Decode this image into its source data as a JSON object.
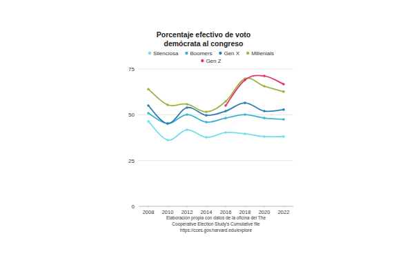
{
  "chart_data": {
    "type": "line",
    "title": "Porcentaje efectivo de voto demócrata al congreso",
    "x": [
      2008,
      2010,
      2012,
      2014,
      2016,
      2018,
      2020,
      2022
    ],
    "xlim": [
      2007,
      2023
    ],
    "xticks": [
      2008,
      2010,
      2012,
      2014,
      2016,
      2018,
      2020,
      2022
    ],
    "ylim": [
      0,
      75
    ],
    "yticks": [
      0,
      25,
      50,
      75
    ],
    "grid": true,
    "legend": "top",
    "marker": "circle",
    "series": [
      {
        "name": "Silenciosa",
        "color": "#6fe0ea",
        "values": [
          46.4,
          36.2,
          41.8,
          37.7,
          40.3,
          39.6,
          38.1,
          38.1
        ]
      },
      {
        "name": "Boomers",
        "color": "#3cb4cf",
        "values": [
          50.9,
          45.2,
          50.1,
          46.0,
          48.2,
          50.1,
          48.2,
          47.5
        ]
      },
      {
        "name": "Gen X",
        "color": "#2b7fb5",
        "values": [
          55.0,
          45.2,
          53.9,
          49.7,
          52.0,
          56.5,
          52.0,
          52.8
        ]
      },
      {
        "name": "Millenials",
        "color": "#9fb33f",
        "values": [
          64.0,
          55.4,
          55.8,
          51.6,
          57.3,
          69.7,
          65.6,
          62.6
        ]
      },
      {
        "name": "Gen Z",
        "color": "#e4336d",
        "values": [
          null,
          null,
          null,
          null,
          55.0,
          69.0,
          71.2,
          66.7
        ]
      }
    ],
    "source": [
      "Elaboración propia con datos de la oficina del The",
      "Cooperative Election Study's Cumulative file",
      "https://cces.gov.harvard.edu/explore"
    ]
  }
}
